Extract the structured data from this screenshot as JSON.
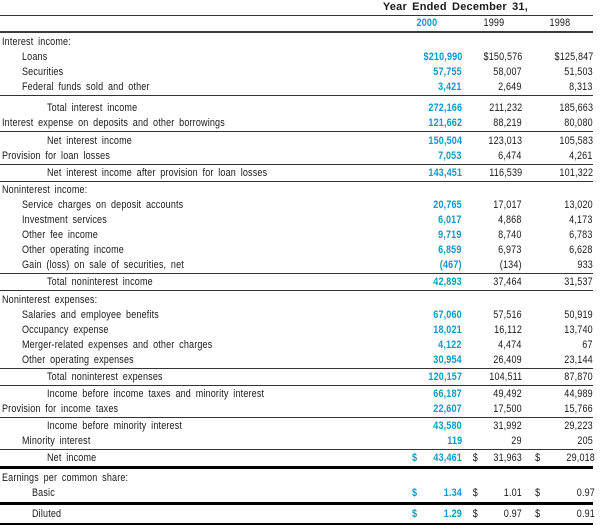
{
  "colors": {
    "accent": "#0f98c4",
    "text": "#1a1a1a",
    "rule_thin": "#333333",
    "rule_thick": "#000000"
  },
  "table": {
    "period_header": "Year Ended December 31,",
    "years": [
      "2000",
      "1999",
      "1998"
    ],
    "highlight_year": "2000",
    "currency_symbol": "$",
    "rows": [
      {
        "label": "Interest income:",
        "ind": 2,
        "values": null,
        "mt": 2
      },
      {
        "label": "Loans",
        "ind": 22,
        "values": [
          "$210,990",
          "$150,576",
          "$125,847"
        ]
      },
      {
        "label": "Securities",
        "ind": 22,
        "values": [
          "57,755",
          "58,007",
          "51,503"
        ]
      },
      {
        "label": "Federal funds sold and other",
        "ind": 22,
        "values": [
          "3,421",
          "2,649",
          "8,313"
        ],
        "rule": "thin"
      },
      {
        "label": "Total interest income",
        "ind": 47,
        "values": [
          "272,166",
          "211,232",
          "185,663"
        ],
        "mt": 5
      },
      {
        "label": "Interest expense on deposits and other borrowings",
        "ind": 2,
        "values": [
          "121,662",
          "88,219",
          "80,080"
        ],
        "rule": "thin"
      },
      {
        "label": "Net interest income",
        "ind": 47,
        "values": [
          "150,504",
          "123,013",
          "105,583"
        ],
        "mt": 2
      },
      {
        "label": "Provision for loan losses",
        "ind": 2,
        "values": [
          "7,053",
          "6,474",
          "4,261"
        ],
        "rule": "thin"
      },
      {
        "label": "Net interest income after provision for loan losses",
        "ind": 47,
        "values": [
          "143,451",
          "116,539",
          "101,322"
        ],
        "mt": 1,
        "rule": "thin"
      },
      {
        "label": "Noninterest income:",
        "ind": 2,
        "values": null,
        "mt": 1
      },
      {
        "label": "Service charges on deposit accounts",
        "ind": 22,
        "values": [
          "20,765",
          "17,017",
          "13,020"
        ]
      },
      {
        "label": "Investment services",
        "ind": 22,
        "values": [
          "6,017",
          "4,868",
          "4,173"
        ]
      },
      {
        "label": "Other fee income",
        "ind": 22,
        "values": [
          "9,719",
          "8,740",
          "6,783"
        ]
      },
      {
        "label": "Other operating income",
        "ind": 22,
        "values": [
          "6,859",
          "6,973",
          "6,628"
        ]
      },
      {
        "label": "Gain (loss) on sale of securities, net",
        "ind": 22,
        "values": [
          "(467)",
          "(134)",
          "933"
        ],
        "rule": "thin"
      },
      {
        "label": "Total noninterest income",
        "ind": 47,
        "values": [
          "42,893",
          "37,464",
          "31,537"
        ],
        "mt": 1,
        "rule": "thin"
      },
      {
        "label": "Noninterest expenses:",
        "ind": 2,
        "values": null,
        "mt": 2
      },
      {
        "label": "Salaries and employee benefits",
        "ind": 22,
        "values": [
          "67,060",
          "57,516",
          "50,919"
        ]
      },
      {
        "label": "Occupancy expense",
        "ind": 22,
        "values": [
          "18,021",
          "16,112",
          "13,740"
        ]
      },
      {
        "label": "Merger-related expenses and other charges",
        "ind": 22,
        "values": [
          "4,122",
          "4,474",
          "67"
        ]
      },
      {
        "label": "Other operating expenses",
        "ind": 22,
        "values": [
          "30,954",
          "26,409",
          "23,144"
        ],
        "rule": "thin"
      },
      {
        "label": "Total noninterest expenses",
        "ind": 47,
        "values": [
          "120,157",
          "104,511",
          "87,870"
        ],
        "mt": 1,
        "rule": "thin"
      },
      {
        "label": "Income before income taxes and minority interest",
        "ind": 47,
        "values": [
          "66,187",
          "49,492",
          "44,989"
        ],
        "mt": 1
      },
      {
        "label": "Provision for income taxes",
        "ind": 2,
        "values": [
          "22,607",
          "17,500",
          "15,766"
        ],
        "rule": "thin"
      },
      {
        "label": "Income before minority interest",
        "ind": 47,
        "values": [
          "43,580",
          "31,992",
          "29,223"
        ],
        "mt": 1
      },
      {
        "label": "Minority interest",
        "ind": 22,
        "values": [
          "119",
          "29",
          "205"
        ],
        "rule": "thin"
      },
      {
        "label": "Net income",
        "ind": 47,
        "values": [
          "43,461",
          "31,963",
          "29,018"
        ],
        "dollar": true,
        "mt": 1,
        "rule": "thick"
      },
      {
        "label": "Earnings per common share:",
        "ind": 2,
        "values": null,
        "mt": 2
      },
      {
        "label": "Basic",
        "ind": 32,
        "values": [
          "1.34",
          "1.01",
          "0.97"
        ],
        "dollar": true,
        "mb": 1,
        "rule": "thick"
      },
      {
        "label": "Diluted",
        "ind": 32,
        "values": [
          "1.29",
          "0.97",
          "0.91"
        ],
        "dollar": true,
        "mt": 2,
        "mb": 1,
        "rule": "thick"
      }
    ]
  }
}
